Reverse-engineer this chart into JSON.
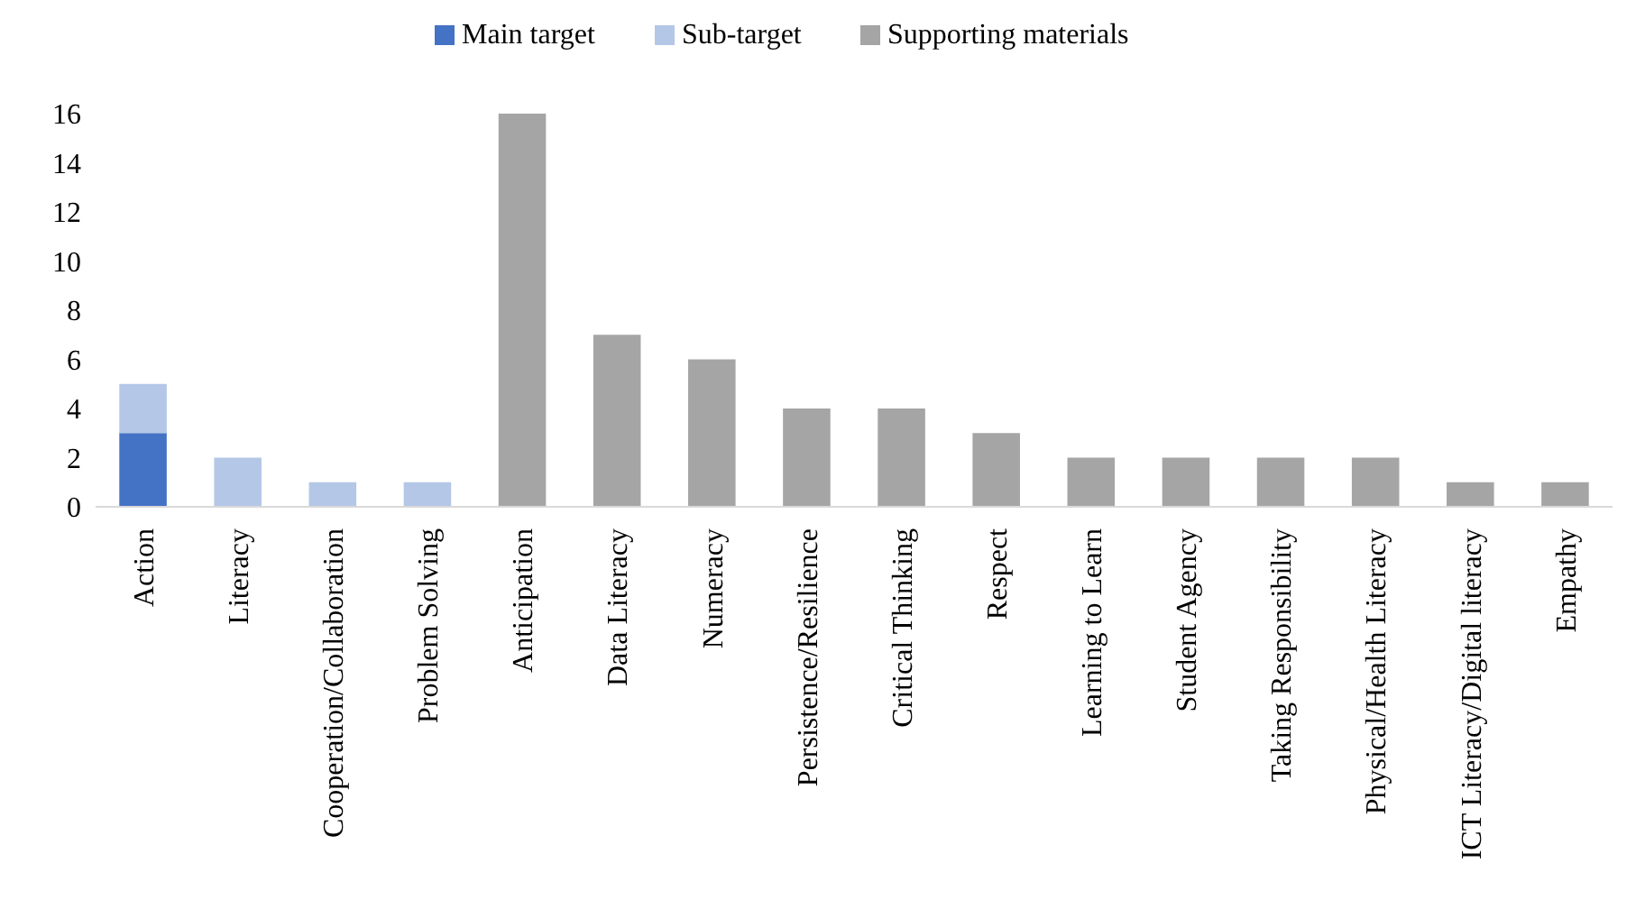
{
  "chart_data": {
    "type": "bar",
    "stacked": true,
    "legend": "top",
    "grid": false,
    "categories": [
      "Action",
      "Literacy",
      "Cooperation/Collaboration",
      "Problem Solving",
      "Anticipation",
      "Data Literacy",
      "Numeracy",
      "Persistence/Resilience",
      "Critical Thinking",
      "Respect",
      "Learning to Learn",
      "Student Agency",
      "Taking Responsibility",
      "Physical/Health Literacy",
      "ICT Literacy/Digital literacy",
      "Empathy"
    ],
    "series": [
      {
        "name": "Main target",
        "color": "#4472c4",
        "values": [
          3,
          null,
          null,
          null,
          null,
          null,
          null,
          null,
          null,
          null,
          null,
          null,
          null,
          null,
          null,
          null
        ]
      },
      {
        "name": "Sub-target",
        "color": "#b4c7e7",
        "values": [
          2,
          2,
          1,
          1,
          null,
          null,
          null,
          null,
          null,
          null,
          null,
          null,
          null,
          null,
          null,
          null
        ]
      },
      {
        "name": "Supporting materials",
        "color": "#a5a5a5",
        "values": [
          null,
          null,
          null,
          null,
          16,
          7,
          6,
          4,
          4,
          3,
          2,
          2,
          2,
          2,
          1,
          1
        ]
      }
    ],
    "ylim": [
      0,
      16
    ],
    "yticks": [
      0,
      2,
      4,
      6,
      8,
      10,
      12,
      14,
      16
    ]
  }
}
